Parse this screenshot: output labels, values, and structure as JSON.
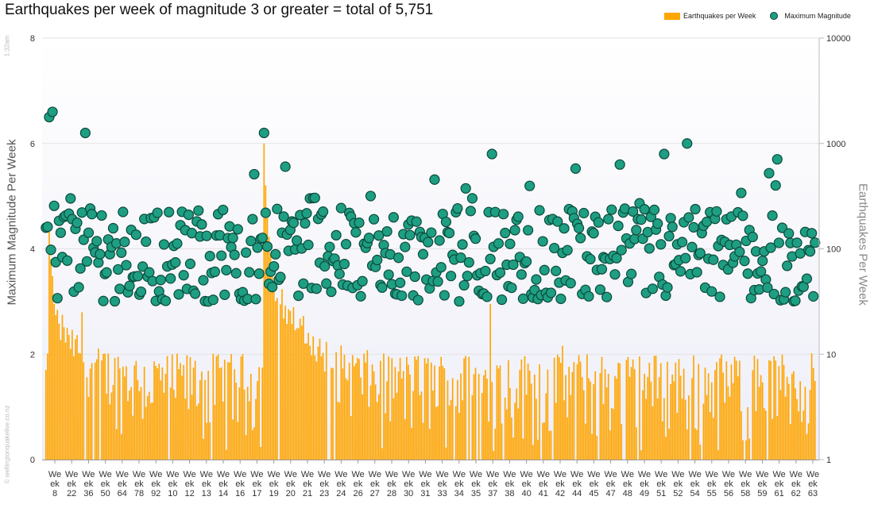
{
  "chart_data": {
    "type": "bar",
    "title": "Earthquakes per week of magnitude 3 or greater = total of 5,751",
    "ylabel_left": "Maximum Magnitude Per Week",
    "ylabel_right": "Earthquakes Per Week",
    "ylim_left": [
      0,
      8
    ],
    "yticks_left": [
      "0",
      "2",
      "4",
      "6",
      "8"
    ],
    "ylim_right_log": [
      1,
      10000
    ],
    "yticks_right": [
      "1",
      "10",
      "100",
      "1000",
      "10000"
    ],
    "legend": {
      "bars": "Earthquakes per Week",
      "dots": "Maximum Magnitude",
      "placement": "top-right"
    },
    "series_colors": {
      "bars": "#FFA500",
      "dots": "#1E9E82",
      "dot_edge": "#0B4A3A",
      "grid": "#e3e3e3",
      "plot_band": "#f4f4fb"
    },
    "x_label_prefix": [
      "We",
      "ek"
    ],
    "x_label_numbers": [
      "8",
      "22",
      "36",
      "50",
      "64",
      "78",
      "92",
      "10",
      "12",
      "13",
      "14",
      "16",
      "17",
      "19",
      "20",
      "21",
      "23",
      "24",
      "26",
      "27",
      "28",
      "30",
      "31",
      "33",
      "34",
      "35",
      "37",
      "38",
      "40",
      "41",
      "42",
      "44",
      "45",
      "47",
      "48",
      "49",
      "51",
      "52",
      "54",
      "55",
      "56",
      "58",
      "59",
      "61",
      "62",
      "63"
    ],
    "n_weeks": 470,
    "bar_baseline_count": 6,
    "bar_peaks": [
      {
        "week": 2,
        "count": 150
      },
      {
        "week": 3,
        "count": 80
      },
      {
        "week": 4,
        "count": 55
      },
      {
        "week": 5,
        "count": 30
      },
      {
        "week": 22,
        "count": 25
      },
      {
        "week": 133,
        "count": 1000
      },
      {
        "week": 134,
        "count": 400
      },
      {
        "week": 135,
        "count": 220
      },
      {
        "week": 136,
        "count": 130
      },
      {
        "week": 137,
        "count": 90
      },
      {
        "week": 138,
        "count": 60
      },
      {
        "week": 271,
        "count": 30
      },
      {
        "week": 315,
        "count": 12
      }
    ],
    "magnitude_highlights": [
      {
        "week": 2,
        "mag": 6.5
      },
      {
        "week": 4,
        "mag": 6.6
      },
      {
        "week": 24,
        "mag": 6.2
      },
      {
        "week": 133,
        "mag": 6.2
      },
      {
        "week": 272,
        "mag": 5.8
      },
      {
        "week": 350,
        "mag": 5.6
      },
      {
        "week": 377,
        "mag": 5.8
      },
      {
        "week": 391,
        "mag": 6.0
      },
      {
        "week": 446,
        "mag": 5.7
      }
    ],
    "magnitude_typical_range": [
      3.0,
      4.8
    ]
  },
  "side_text": {
    "time": "1:32am",
    "site": "© wellingtonquakelive.co.nz"
  }
}
